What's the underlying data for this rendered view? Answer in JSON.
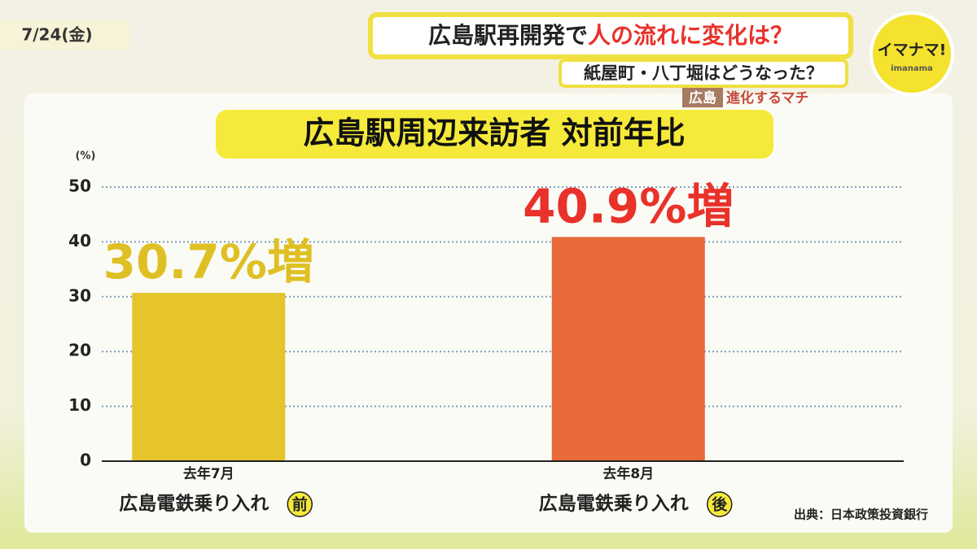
{
  "header": {
    "date": "7/24(金)",
    "headline": [
      "広島駅再開発で",
      "人の流れに変化は？"
    ],
    "subheadline": "紙屋町・八丁堀はどうなった？",
    "tag": "広島",
    "segment": "進化するマチ",
    "logo": "イマナマ!",
    "logo_sub": "imanama"
  },
  "chart_data": {
    "type": "bar",
    "title": "広島駅周辺来訪者 対前年比",
    "y_unit": "(%)",
    "categories": [
      "去年7月",
      "去年8月"
    ],
    "category_notes": [
      "広島電鉄乗り入れ",
      "広島電鉄乗り入れ"
    ],
    "category_badges": [
      "前",
      "後"
    ],
    "values": [
      30.7,
      40.9
    ],
    "value_labels": [
      "30.7%増",
      "40.9%増"
    ],
    "colors": [
      "#e5c42c",
      "#e8693a"
    ],
    "value_label_colors": [
      "#dfc024",
      "#e8322a"
    ],
    "ylim": [
      0,
      50
    ],
    "yticks": [
      0,
      10,
      20,
      30,
      40,
      50
    ],
    "grid": true,
    "source": "出典：日本政策投資銀行"
  }
}
